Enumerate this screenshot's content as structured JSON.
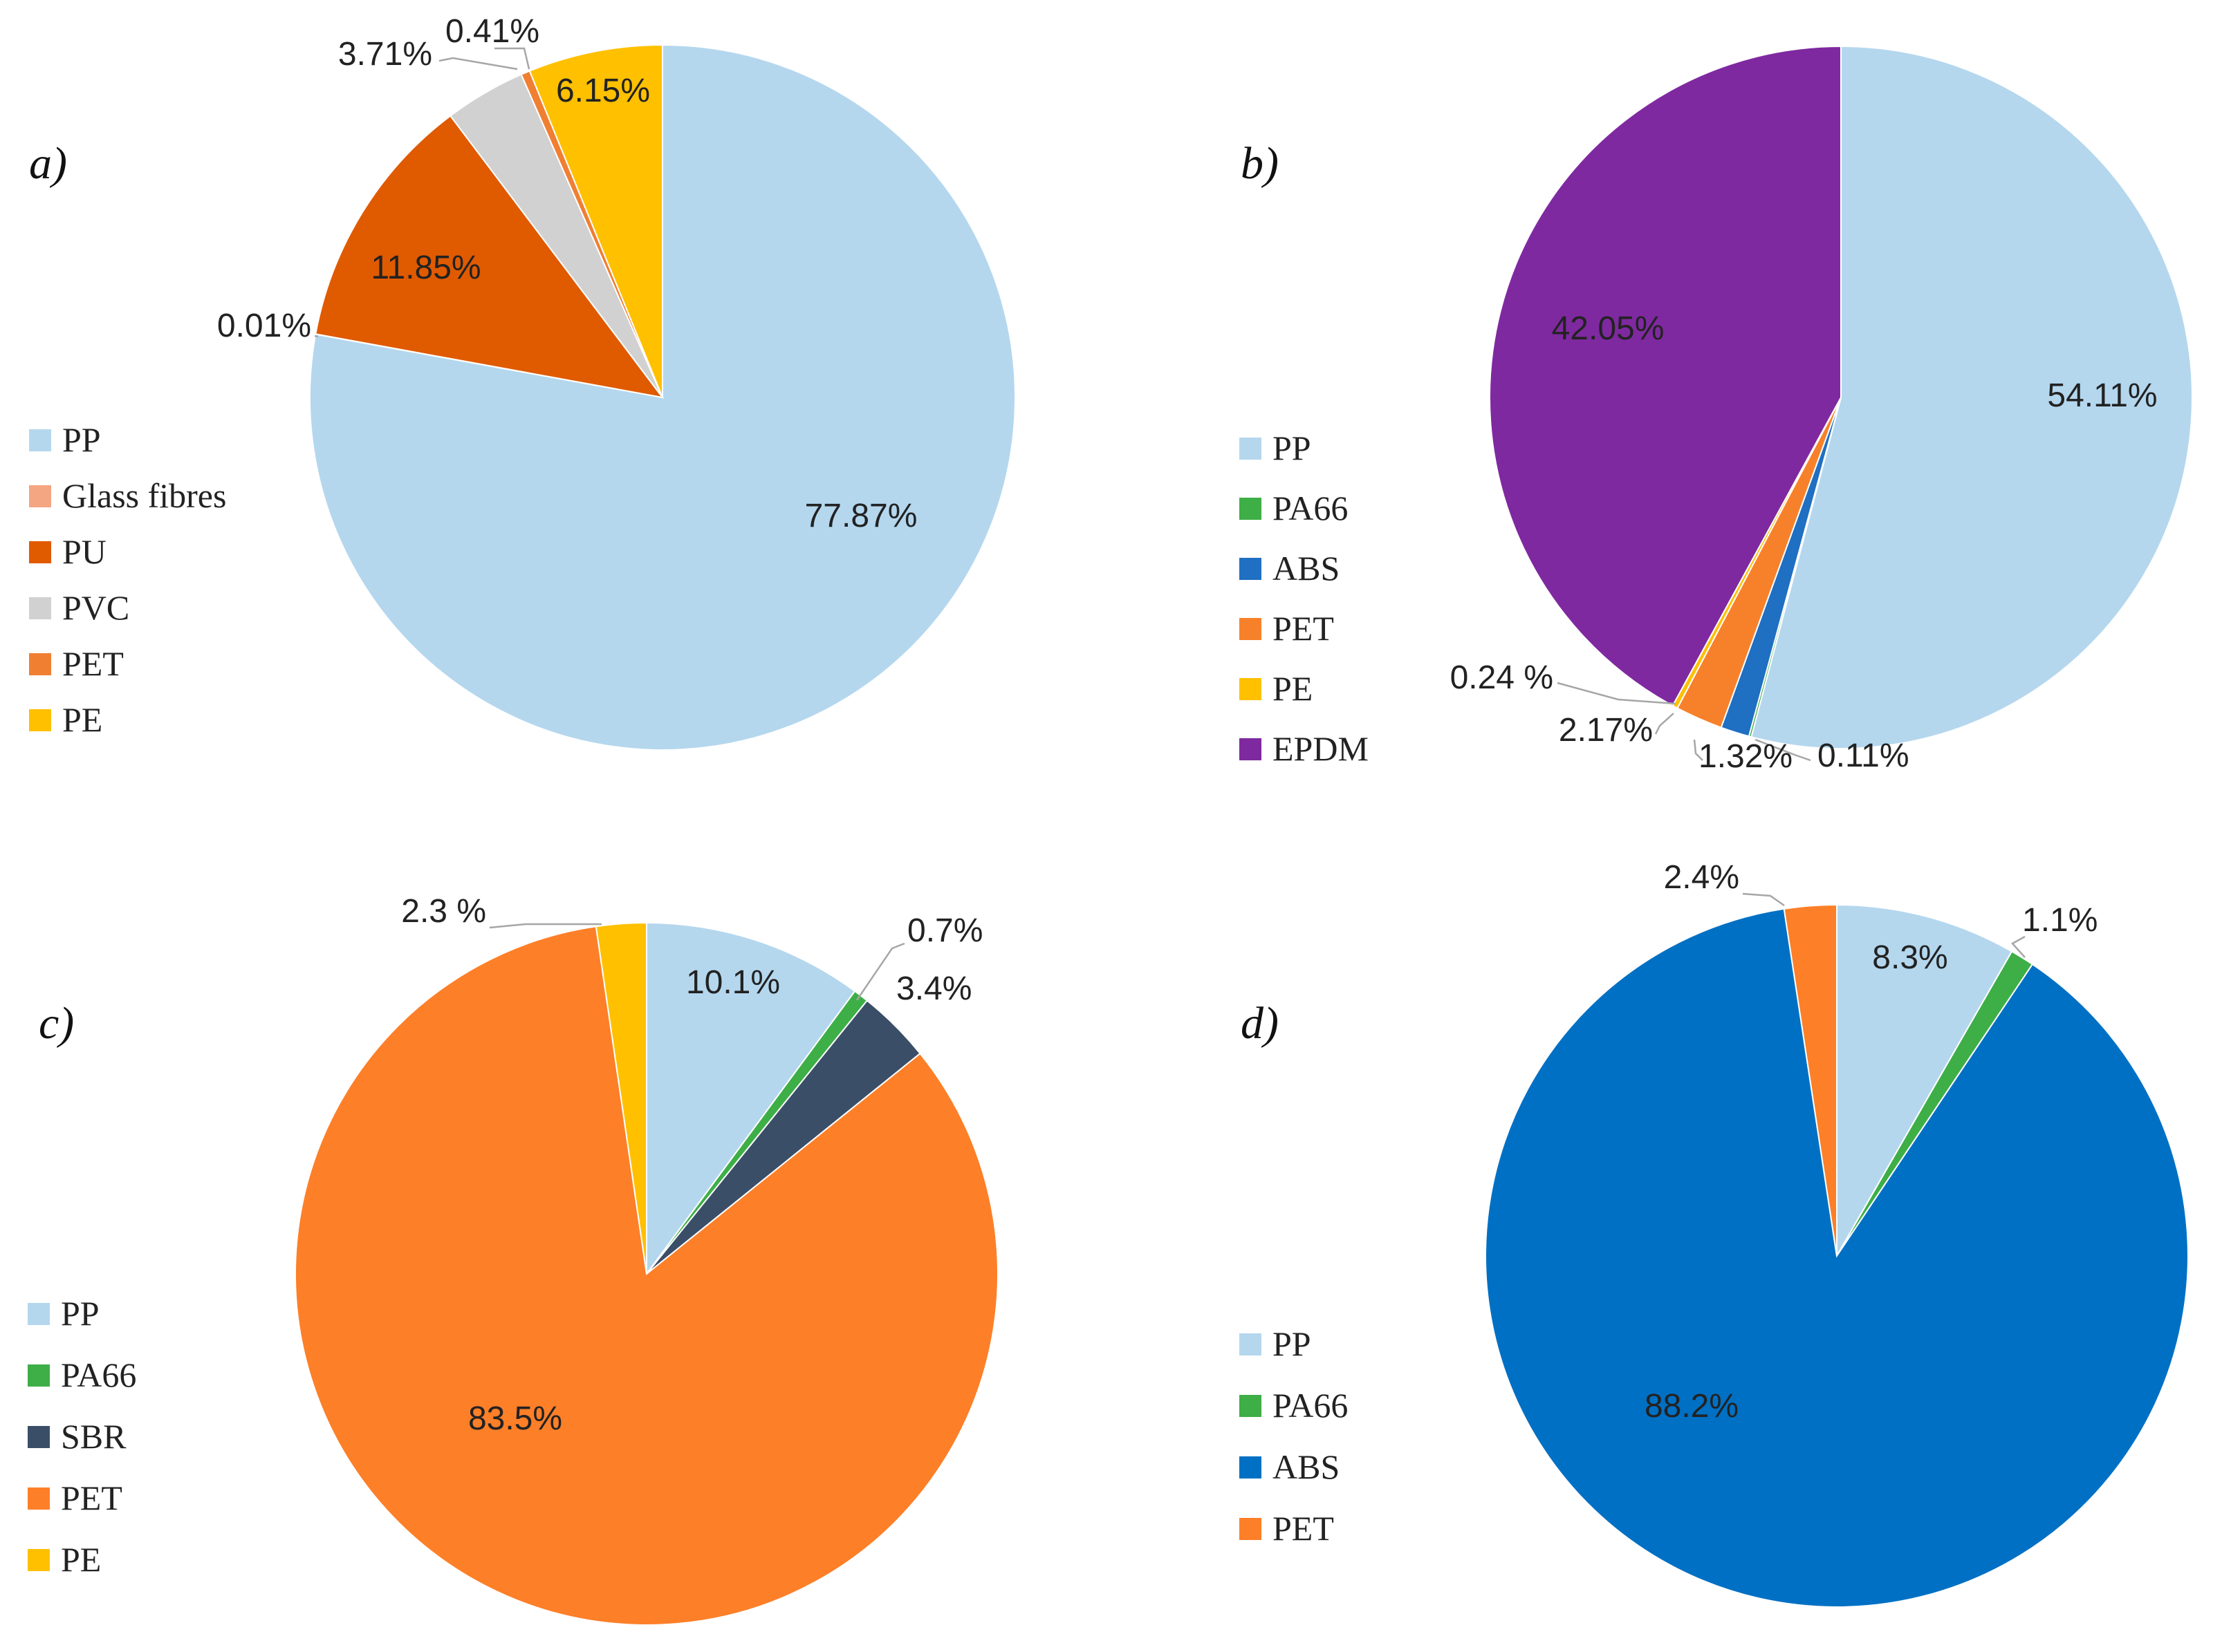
{
  "chart_data": [
    {
      "type": "pie",
      "panel": "a)",
      "categories": [
        "PP",
        "Glass fibres",
        "PU",
        "PVC",
        "PET",
        "PE"
      ],
      "values": [
        77.87,
        0.01,
        11.85,
        3.71,
        0.41,
        6.15
      ],
      "labels": [
        "77.87%",
        "0.01%",
        "11.85%",
        "3.71%",
        "0.41%",
        "6.15%"
      ],
      "colors": [
        "#b4d7ee",
        "#f4a582",
        "#e05a00",
        "#d1d1d1",
        "#f07f32",
        "#ffc000"
      ],
      "legend": "left"
    },
    {
      "type": "pie",
      "panel": "b)",
      "categories": [
        "PP",
        "PA66",
        "ABS",
        "PET",
        "PE",
        "EPDM"
      ],
      "values": [
        54.11,
        0.11,
        1.32,
        2.17,
        0.24,
        42.05
      ],
      "labels": [
        "54.11%",
        "0.11%",
        "1.32%",
        "2.17%",
        "0.24 %",
        "42.05%"
      ],
      "colors": [
        "#b4d7ee",
        "#3eae47",
        "#1f6fc2",
        "#f7812a",
        "#ffc000",
        "#7f29a0"
      ],
      "legend": "left"
    },
    {
      "type": "pie",
      "panel": "c)",
      "categories": [
        "PP",
        "PA66",
        "SBR",
        "PET",
        "PE"
      ],
      "values": [
        10.1,
        0.7,
        3.4,
        83.5,
        2.3
      ],
      "labels": [
        "10.1%",
        "0.7%",
        "3.4%",
        "83.5%",
        "2.3 %"
      ],
      "colors": [
        "#b4d7ee",
        "#3eae47",
        "#3a4e67",
        "#fd7f28",
        "#ffc000"
      ],
      "legend": "left"
    },
    {
      "type": "pie",
      "panel": "d)",
      "categories": [
        "PP",
        "PA66",
        "ABS",
        "PET"
      ],
      "values": [
        8.3,
        1.1,
        88.2,
        2.4
      ],
      "labels": [
        "8.3%",
        "1.1%",
        "88.2%",
        "2.4%"
      ],
      "colors": [
        "#b4d7ee",
        "#3eae47",
        "#0070c4",
        "#fd7f28"
      ],
      "legend": "left"
    }
  ]
}
